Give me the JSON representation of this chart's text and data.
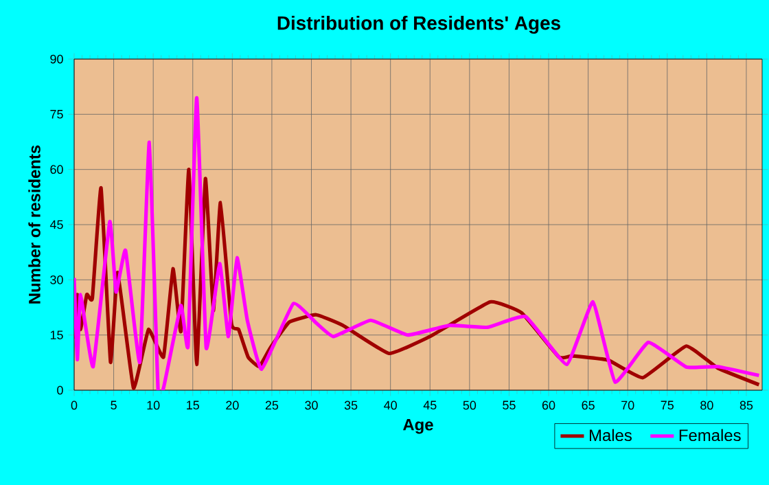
{
  "chart_data": {
    "type": "line",
    "title": "Distribution of Residents' Ages",
    "xlabel": "Age",
    "ylabel": "Number of residents",
    "xlim": [
      0,
      87
    ],
    "xticks": [
      0,
      5,
      10,
      15,
      20,
      25,
      30,
      35,
      40,
      45,
      50,
      55,
      60,
      65,
      70,
      75,
      80,
      85
    ],
    "ylim": [
      0,
      90
    ],
    "yticks": [
      0,
      15,
      30,
      45,
      60,
      75,
      90
    ],
    "grid": true,
    "legend": "bottom right",
    "marker": "none",
    "line_style": "solid",
    "series": [
      {
        "name": "Males",
        "color": "#a00000",
        "x": [
          0,
          0.4,
          0.8,
          1.6,
          2.3,
          3.4,
          4.6,
          5.5,
          7.5,
          9.4,
          11.3,
          12.5,
          13.5,
          14.5,
          15.5,
          16.6,
          17.6,
          18.5,
          19.9,
          20.8,
          22,
          23.4,
          24.8,
          27.2,
          30.6,
          34,
          39.8,
          45,
          52.6,
          56.6,
          61.3,
          63,
          67.5,
          71.9,
          77.4,
          81.4,
          86.6
        ],
        "values": [
          14,
          26,
          16.5,
          26,
          25,
          55,
          7.6,
          32,
          0.6,
          16.5,
          9,
          33,
          16,
          60,
          7,
          57.5,
          21.6,
          51,
          18,
          16.5,
          9,
          6.4,
          11.5,
          18.5,
          20.5,
          17.6,
          10,
          14.6,
          24,
          21,
          9,
          9.3,
          8.2,
          3.4,
          12,
          6,
          1.5
        ]
      },
      {
        "name": "Females",
        "color": "#ff00ff",
        "x": [
          0,
          0.4,
          0.8,
          2.4,
          4.5,
          5.3,
          6.5,
          8.3,
          9.5,
          10.6,
          11.3,
          13.5,
          14.4,
          15.5,
          16.7,
          18.4,
          19.5,
          20.6,
          21.9,
          23.7,
          27.7,
          30.6,
          32.8,
          37.5,
          42.2,
          47.4,
          52.3,
          57.1,
          62.3,
          65.6,
          68.4,
          72.6,
          77.4,
          81.4,
          86.6
        ],
        "values": [
          30.5,
          8.3,
          26,
          6.4,
          45.8,
          26.7,
          38,
          7.6,
          67.4,
          0.6,
          0.6,
          23,
          12,
          79.5,
          11.5,
          34.4,
          14.6,
          36,
          19,
          5.7,
          23.5,
          18.3,
          14.6,
          19,
          15,
          17.6,
          17.1,
          20,
          7,
          24,
          2.2,
          13,
          6.3,
          6.4,
          4
        ]
      }
    ]
  }
}
